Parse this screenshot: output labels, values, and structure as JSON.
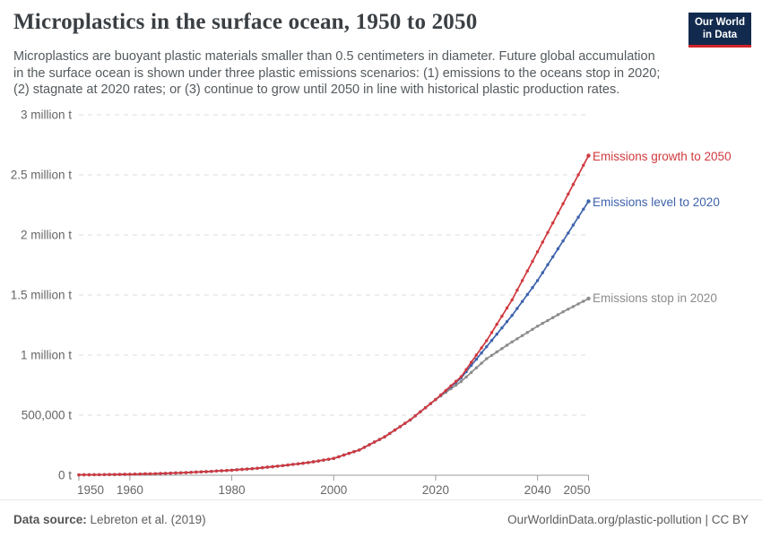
{
  "header": {
    "title": "Microplastics in the surface ocean, 1950 to 2050",
    "subtitle_lines": [
      "Microplastics are buoyant plastic materials smaller than 0.5 centimeters in diameter. Future global accumulation",
      "in the surface ocean is shown under three plastic emissions scenarios: (1) emissions to the oceans stop in 2020;",
      "(2) stagnate at 2020 rates; or (3) continue to grow until 2050 in line with historical plastic production rates."
    ],
    "logo_line1": "Our World",
    "logo_line2": "in Data",
    "logo_colors": {
      "background": "#122a4d",
      "underline": "#d1232a"
    }
  },
  "footer": {
    "source_label": "Data source:",
    "source_value": "Lebreton et al. (2019)",
    "right_text": "OurWorldinData.org/plastic-pollution | CC BY"
  },
  "chart_data": {
    "type": "line",
    "title": "Microplastics in the surface ocean, 1950 to 2050",
    "unit": "tonnes",
    "grid": "horizontal dashed gridlines, solid baseline axis",
    "legend_position": "line-end labels at right",
    "x_range": [
      1950,
      2050
    ],
    "y_range_million_t": [
      0,
      3
    ],
    "x_ticks": [
      {
        "year": 1950,
        "label": "1950"
      },
      {
        "year": 1960,
        "label": "1960"
      },
      {
        "year": 1980,
        "label": "1980"
      },
      {
        "year": 2000,
        "label": "2000"
      },
      {
        "year": 2020,
        "label": "2020"
      },
      {
        "year": 2040,
        "label": "2040"
      },
      {
        "year": 2050,
        "label": "2050"
      }
    ],
    "y_ticks": [
      {
        "mt": 0,
        "label": "0 t"
      },
      {
        "mt": 0.5,
        "label": "500,000 t"
      },
      {
        "mt": 1,
        "label": "1 million t"
      },
      {
        "mt": 1.5,
        "label": "1.5 million t"
      },
      {
        "mt": 2,
        "label": "2 million t"
      },
      {
        "mt": 2.5,
        "label": "2.5 million t"
      },
      {
        "mt": 3,
        "label": "3 million t"
      }
    ],
    "anchor_years": [
      1950,
      1955,
      1960,
      1965,
      1970,
      1975,
      1980,
      1985,
      1990,
      1995,
      2000,
      2005,
      2010,
      2015,
      2020,
      2025,
      2030,
      2035,
      2040,
      2045,
      2050
    ],
    "series": [
      {
        "name": "Emissions growth to 2050",
        "color": "#d0393e",
        "values_million_t": [
          0.003,
          0.005,
          0.008,
          0.013,
          0.02,
          0.03,
          0.042,
          0.058,
          0.08,
          0.105,
          0.14,
          0.21,
          0.32,
          0.46,
          0.63,
          0.82,
          1.12,
          1.46,
          1.86,
          2.26,
          2.66
        ]
      },
      {
        "name": "Emissions level to 2020",
        "color": "#3e62ac",
        "values_million_t": [
          0.003,
          0.005,
          0.008,
          0.013,
          0.02,
          0.03,
          0.042,
          0.058,
          0.08,
          0.105,
          0.14,
          0.21,
          0.32,
          0.46,
          0.63,
          0.81,
          1.07,
          1.33,
          1.62,
          1.95,
          2.28
        ]
      },
      {
        "name": "Emissions stop in 2020",
        "color": "#8b8b8b",
        "values_million_t": [
          0.003,
          0.005,
          0.008,
          0.013,
          0.02,
          0.03,
          0.042,
          0.058,
          0.08,
          0.105,
          0.14,
          0.21,
          0.32,
          0.46,
          0.63,
          0.78,
          0.97,
          1.11,
          1.24,
          1.36,
          1.47
        ]
      }
    ]
  }
}
